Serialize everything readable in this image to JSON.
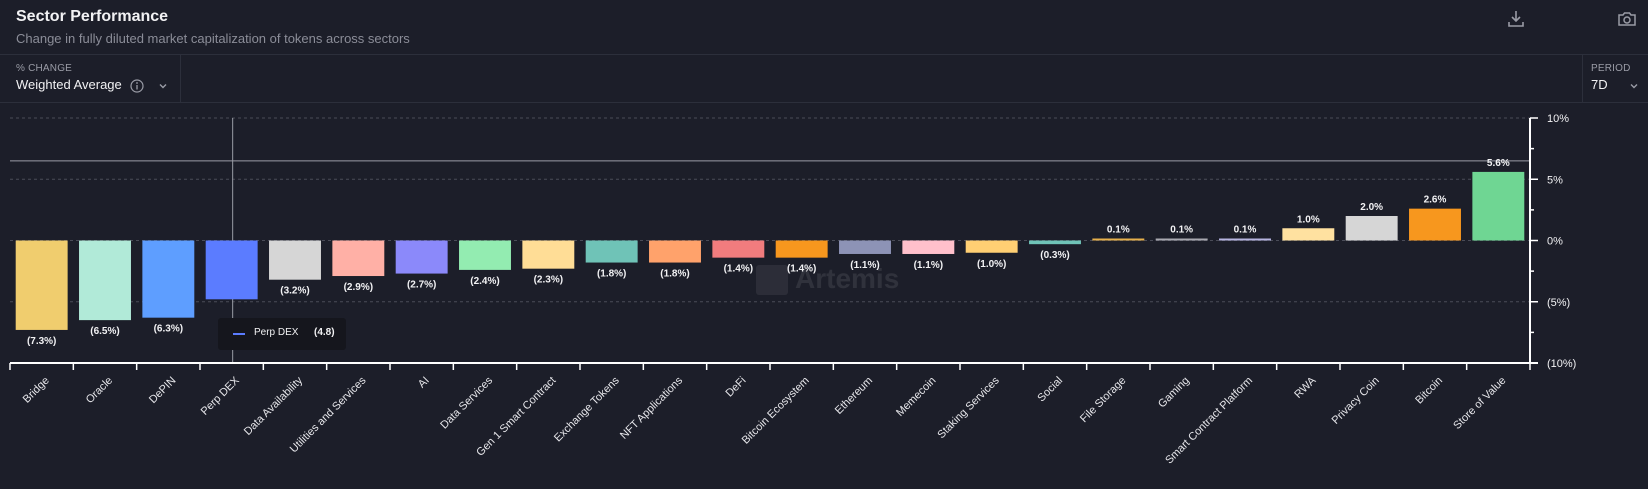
{
  "header": {
    "title": "Sector Performance",
    "subtitle": "Change in fully diluted market capitalization of tokens across sectors",
    "download_icon": "download-icon",
    "camera_icon": "camera-icon"
  },
  "controls": {
    "metric_label": "% CHANGE",
    "metric_value": "Weighted Average",
    "info_icon": "info-icon",
    "period_label": "PERIOD",
    "period_value": "7D"
  },
  "tooltip": {
    "series": "Perp DEX",
    "value": "(4.8)",
    "color": "#5b7cff"
  },
  "watermark": "Artemis",
  "chart_data": {
    "type": "bar",
    "title": "Sector Performance",
    "subtitle": "Change in fully diluted market capitalization of tokens across sectors",
    "xlabel": "",
    "ylabel": "% Change",
    "ylim": [
      -10,
      10
    ],
    "yticks": [
      10,
      5,
      0,
      -5,
      -10
    ],
    "ytick_labels": [
      "10%",
      "5%",
      "0%",
      "(5%)",
      "(10%)"
    ],
    "grid": true,
    "axis_position": "right",
    "categories": [
      "Bridge",
      "Oracle",
      "DePIN",
      "Perp DEX",
      "Data Availability",
      "Utilities and Services",
      "AI",
      "Data Services",
      "Gen 1 Smart Contract",
      "Exchange Tokens",
      "NFT Applications",
      "DeFi",
      "Bitcoin Ecosystem",
      "Ethereum",
      "Memecoin",
      "Staking Services",
      "Social",
      "File Storage",
      "Gaming",
      "Smart Contract Platform",
      "RWA",
      "Privacy Coin",
      "Bitcoin",
      "Store of Value"
    ],
    "values": [
      -7.3,
      -6.5,
      -6.3,
      -4.8,
      -3.2,
      -2.9,
      -2.7,
      -2.4,
      -2.3,
      -1.8,
      -1.8,
      -1.4,
      -1.4,
      -1.1,
      -1.1,
      -1.0,
      -0.3,
      0.1,
      0.1,
      0.1,
      1.0,
      2.0,
      2.6,
      5.6
    ],
    "data_labels": [
      "(7.3%)",
      "(6.5%)",
      "(6.3%)",
      "",
      "(3.2%)",
      "(2.9%)",
      "(2.7%)",
      "(2.4%)",
      "(2.3%)",
      "(1.8%)",
      "(1.8%)",
      "(1.4%)",
      "(1.4%)",
      "(1.1%)",
      "(1.1%)",
      "(1.0%)",
      "(0.3%)",
      "0.1%",
      "0.1%",
      "0.1%",
      "1.0%",
      "2.0%",
      "2.6%",
      "5.6%"
    ],
    "colors": [
      "#f0cd6e",
      "#b1ead8",
      "#5e9eff",
      "#5b7cff",
      "#d6d6d6",
      "#ffb0a6",
      "#8b89fa",
      "#93ecb1",
      "#ffdd96",
      "#6fc3b7",
      "#ffa26b",
      "#f17c7e",
      "#f7971e",
      "#8d93b6",
      "#ffc0cb",
      "#ffcf73",
      "#6fc3b7",
      "#e6b04c",
      "#a8a8b0",
      "#b6b4e0",
      "#ffe1a0",
      "#d6d6d6",
      "#f7971e",
      "#6fd693"
    ],
    "hover_category": "Perp DEX",
    "crosshair_value": 6.5
  }
}
